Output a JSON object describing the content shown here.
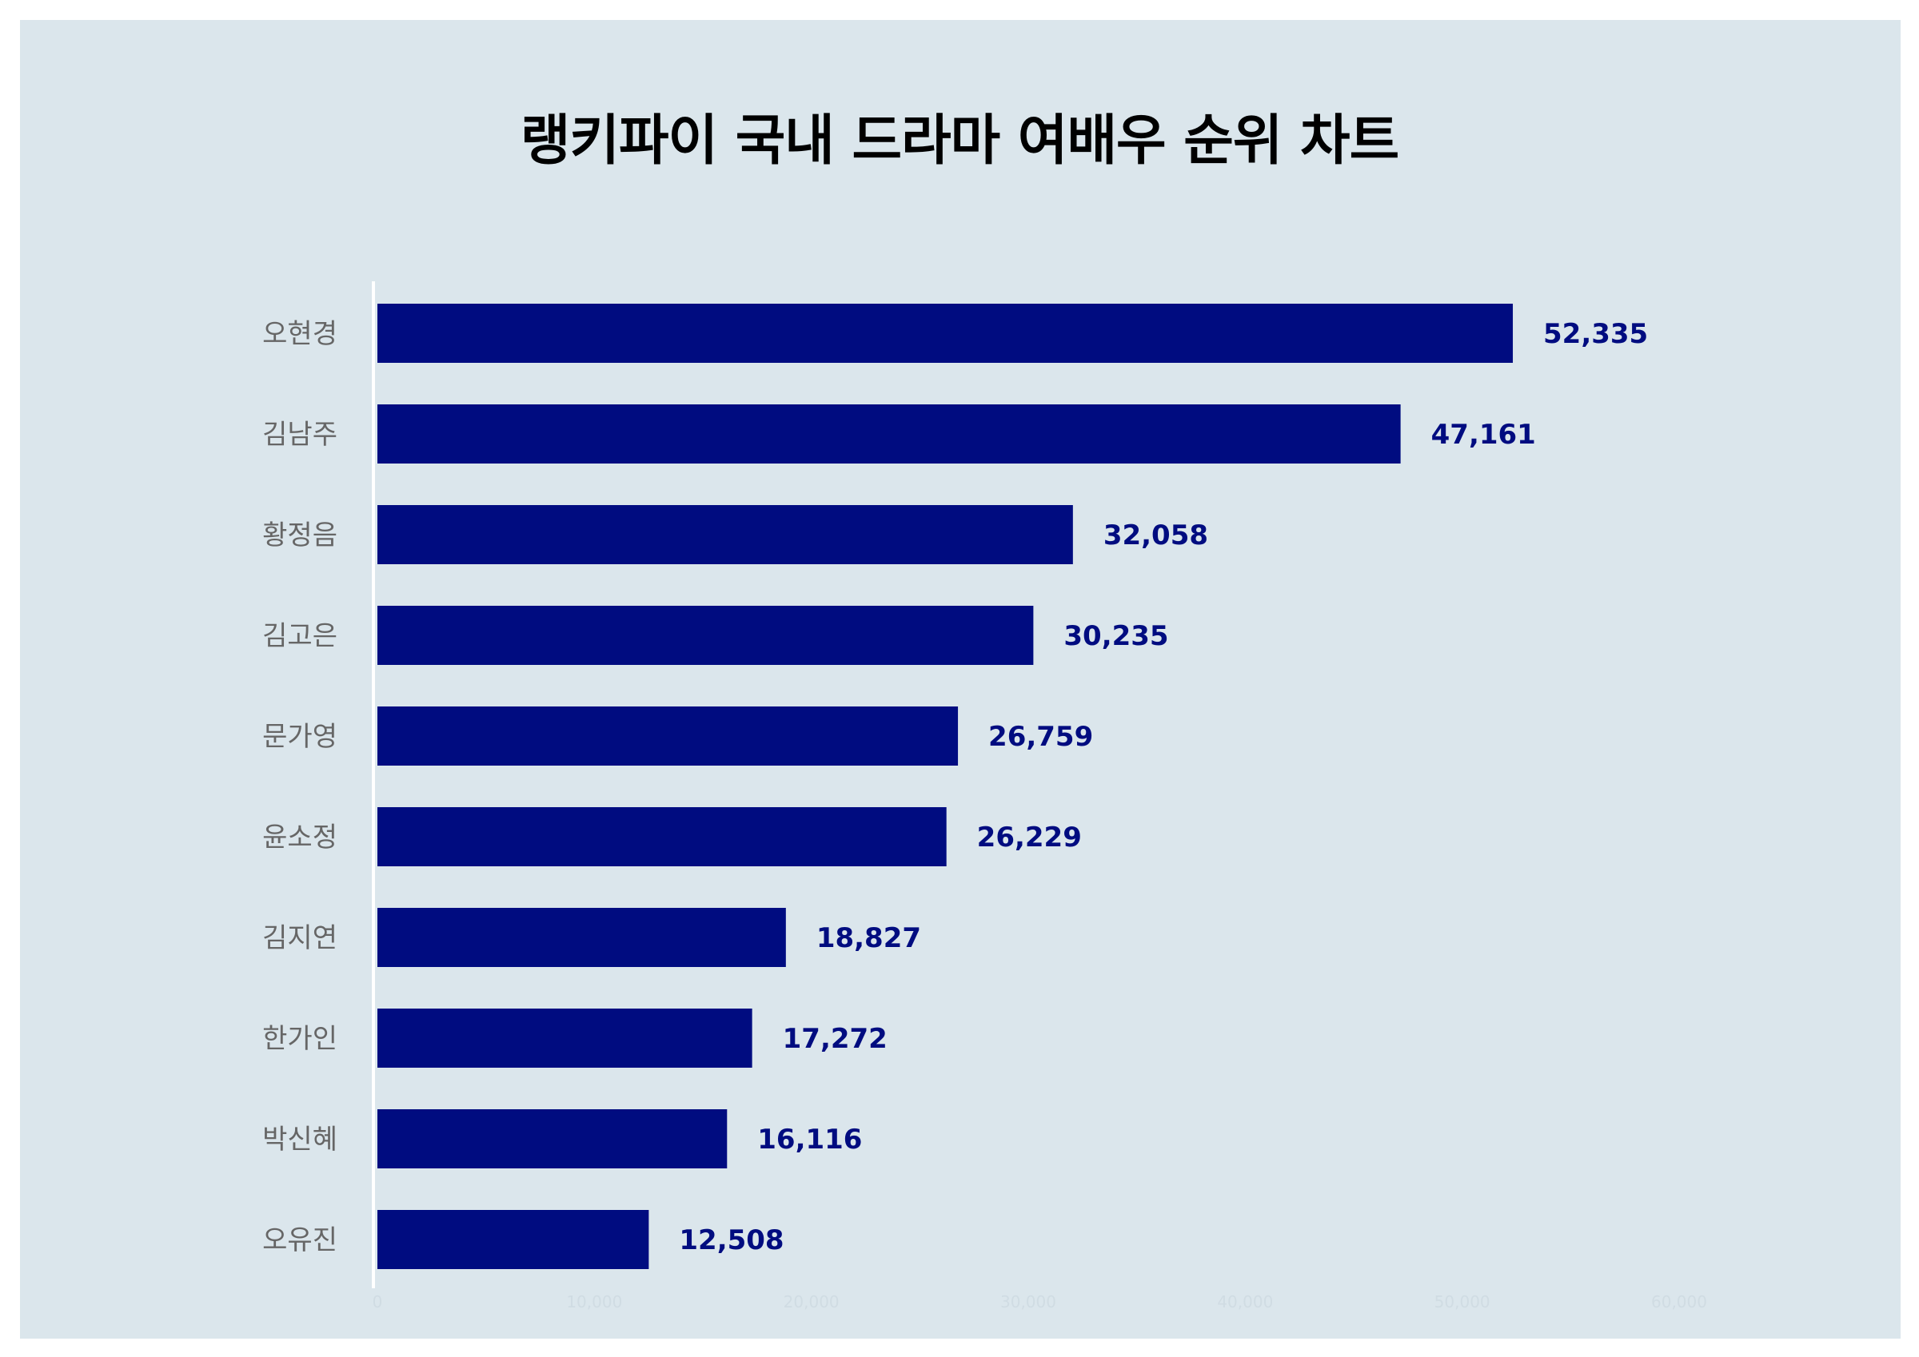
{
  "colors": {
    "panel_background": "#dbe6ec",
    "bar": "#000c80",
    "value_label": "#000c80",
    "category_label": "#666666",
    "axis_line": "#ffffff",
    "tick_label": "#d0dce3"
  },
  "chart_data": {
    "type": "bar",
    "orientation": "horizontal",
    "title": "랭키파이 국내 드라마 여배우 순위 차트",
    "categories": [
      "오현경",
      "김남주",
      "황정음",
      "김고은",
      "문가영",
      "윤소정",
      "김지연",
      "한가인",
      "박신혜",
      "오유진"
    ],
    "values": [
      52335,
      47161,
      32058,
      30235,
      26759,
      26229,
      18827,
      17272,
      16116,
      12508
    ],
    "value_labels": [
      "52,335",
      "47,161",
      "32,058",
      "30,235",
      "26,759",
      "26,229",
      "18,827",
      "17,272",
      "16,116",
      "12,508"
    ],
    "xlim": [
      0,
      60000
    ],
    "x_ticks": [
      "0",
      "10,000",
      "20,000",
      "30,000",
      "40,000",
      "50,000",
      "60,000"
    ],
    "xlabel": "",
    "ylabel": "",
    "grid": false,
    "legend": "none"
  }
}
